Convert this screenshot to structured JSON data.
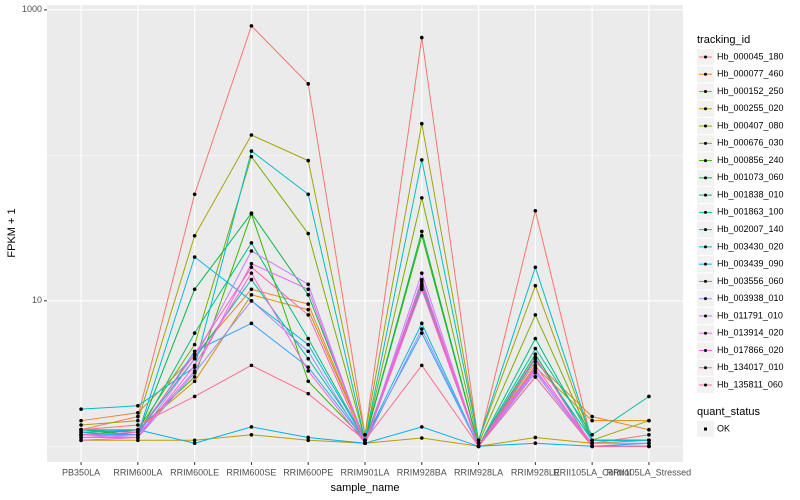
{
  "chart_data": {
    "type": "line",
    "x_label": "sample_name",
    "y_label": "FPKM + 1",
    "log_y": true,
    "grid": true,
    "legend_title": "tracking_id",
    "point_legend": {
      "title": "quant_status",
      "labels": [
        "OK"
      ]
    },
    "point_color": "#000000",
    "ylim": [
      0.78,
      1080
    ],
    "yticks": [
      10,
      1000
    ],
    "categories": [
      "PB350LA",
      "RRIM600LA",
      "RRIM600LE",
      "RRIM600SE",
      "RRIM600PE",
      "RRIM901LA",
      "RRIM928BA",
      "RRIM928LA",
      "RRIM928LE",
      "RRII105LA_Control",
      "RRII105LA_Stressed"
    ],
    "series": [
      {
        "name": "Hb_000045_180",
        "color": "#F8766D",
        "values": [
          1.3,
          1.6,
          54,
          776,
          310,
          1.2,
          645,
          1.05,
          41.6,
          1.05,
          1.2
        ]
      },
      {
        "name": "Hb_000077_460",
        "color": "#EA8331",
        "values": [
          1.5,
          1.7,
          4.2,
          12,
          9.5,
          1.1,
          12,
          1,
          3.8,
          1.6,
          1.3
        ]
      },
      {
        "name": "Hb_000152_250",
        "color": "#D89000",
        "values": [
          1.2,
          1.3,
          2.8,
          11,
          8.7,
          1.1,
          13,
          1,
          3.5,
          1.5,
          1.5
        ]
      },
      {
        "name": "Hb_000255_020",
        "color": "#C09B00",
        "values": [
          1.1,
          1.1,
          1.1,
          1.2,
          1.1,
          1.05,
          1.14,
          1,
          1.15,
          1.05,
          1.1
        ]
      },
      {
        "name": "Hb_000407_080",
        "color": "#A3A500",
        "values": [
          1.4,
          1.5,
          28,
          138,
          92,
          1.2,
          165,
          1.1,
          12.7,
          1.1,
          1.5
        ]
      },
      {
        "name": "Hb_000676_030",
        "color": "#7CAE00",
        "values": [
          1.3,
          1.3,
          5,
          98,
          29,
          1.1,
          51,
          1.05,
          8,
          1.1,
          1.1
        ]
      },
      {
        "name": "Hb_000856_240",
        "color": "#39B600",
        "values": [
          1.2,
          1.3,
          3,
          39.6,
          2.8,
          1.1,
          28,
          1,
          4,
          1.1,
          1.1
        ]
      },
      {
        "name": "Hb_001073_060",
        "color": "#00BB4E",
        "values": [
          1.3,
          1.2,
          12,
          40,
          11,
          1.1,
          30,
          1,
          4.3,
          1,
          1
        ]
      },
      {
        "name": "Hb_001838_010",
        "color": "#00BF7D",
        "values": [
          1.25,
          1.2,
          6,
          25,
          5.5,
          1.1,
          13.5,
          1,
          5.5,
          1.1,
          1.1
        ]
      },
      {
        "name": "Hb_001863_100",
        "color": "#00C1A3",
        "values": [
          1.3,
          1.25,
          4,
          14,
          4,
          1.1,
          12.5,
          1,
          4.7,
          1.2,
          2.2
        ]
      },
      {
        "name": "Hb_002007_140",
        "color": "#00BFC4",
        "values": [
          1.8,
          1.9,
          3.5,
          107,
          54,
          1.1,
          93,
          1.1,
          17,
          1.1,
          1.1
        ]
      },
      {
        "name": "Hb_003430_020",
        "color": "#00BAE0",
        "values": [
          1.2,
          1.2,
          20,
          10,
          5,
          1.1,
          7,
          1,
          4,
          1.1,
          1.1
        ]
      },
      {
        "name": "Hb_003439_090",
        "color": "#00B0F6",
        "values": [
          1.25,
          1.3,
          1.05,
          1.36,
          1.15,
          1.05,
          1.36,
          1,
          1.05,
          1,
          1.05
        ]
      },
      {
        "name": "Hb_003556_060",
        "color": "#35A2FF",
        "values": [
          1.2,
          1.2,
          4.5,
          7,
          3.5,
          1.1,
          6,
          1,
          3,
          1,
          1
        ]
      },
      {
        "name": "Hb_003938_010",
        "color": "#9590FF",
        "values": [
          1.15,
          1.15,
          3.2,
          10,
          4.5,
          1.05,
          6.4,
          1,
          3.2,
          1,
          1
        ]
      },
      {
        "name": "Hb_011791_010",
        "color": "#C77CFF",
        "values": [
          1.2,
          1.15,
          4,
          22,
          13,
          1.05,
          15.5,
          1,
          3.4,
          1,
          1
        ]
      },
      {
        "name": "Hb_013914_020",
        "color": "#E76BF3",
        "values": [
          1.15,
          1.2,
          3.3,
          18,
          12,
          1.05,
          14,
          1,
          3.3,
          1.05,
          1.05
        ]
      },
      {
        "name": "Hb_017866_020",
        "color": "#FA62DB",
        "values": [
          1.1,
          1.15,
          3.6,
          15.5,
          3.3,
          1.05,
          12,
          1,
          3.6,
          1,
          1
        ]
      },
      {
        "name": "Hb_134017_010",
        "color": "#FF62BC",
        "values": [
          1.2,
          1.25,
          4.3,
          17,
          8,
          1.05,
          13,
          1,
          4.1,
          1,
          1
        ]
      },
      {
        "name": "Hb_135811_060",
        "color": "#FF6C91",
        "values": [
          1.3,
          1.4,
          2.2,
          3.6,
          2.3,
          1.1,
          3.6,
          1,
          3,
          1,
          1
        ]
      }
    ]
  }
}
